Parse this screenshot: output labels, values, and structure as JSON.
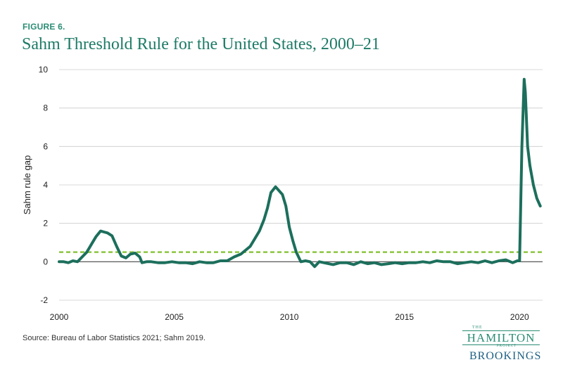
{
  "figure_label": "FIGURE 6.",
  "source": "Bureau of Labor Statistics 2021; Sahm 2019.",
  "source_prefix": "Source: ",
  "logo": {
    "the": "THE",
    "hamilton": "HAMILTON",
    "project": "PROJECT",
    "brookings": "BROOKINGS"
  },
  "colors": {
    "line": "#1c6f5c",
    "threshold": "#8cc63f",
    "title": "#1d7a66",
    "grid": "#cccccc"
  },
  "chart_data": {
    "type": "line",
    "title": "Sahm Threshold Rule for the United States, 2000–21",
    "xlabel": "",
    "ylabel": "Sahm rule gap",
    "xlim": [
      2000,
      2021
    ],
    "ylim": [
      -2,
      10
    ],
    "x_ticks": [
      2000,
      2005,
      2010,
      2015,
      2020
    ],
    "y_ticks": [
      -2,
      0,
      2,
      4,
      6,
      8,
      10
    ],
    "grid": "horizontal",
    "legend": "none",
    "threshold": {
      "value": 0.5,
      "style": "dashed"
    },
    "series": [
      {
        "x": [
          2000.0,
          2000.2,
          2000.4,
          2000.6,
          2000.8,
          2001.0,
          2001.2,
          2001.4,
          2001.6,
          2001.8,
          2001.95,
          2002.1,
          2002.3,
          2002.5,
          2002.7,
          2002.9,
          2003.1,
          2003.3,
          2003.5,
          2003.6,
          2003.8,
          2004.0,
          2004.3,
          2004.6,
          2004.9,
          2005.2,
          2005.5,
          2005.8,
          2006.1,
          2006.4,
          2006.7,
          2007.0,
          2007.3,
          2007.6,
          2007.9,
          2008.1,
          2008.3,
          2008.5,
          2008.7,
          2008.9,
          2009.05,
          2009.2,
          2009.4,
          2009.55,
          2009.7,
          2009.85,
          2010.0,
          2010.15,
          2010.3,
          2010.5,
          2010.7,
          2010.9,
          2011.1,
          2011.3,
          2011.5,
          2011.7,
          2011.9,
          2012.2,
          2012.5,
          2012.8,
          2013.1,
          2013.4,
          2013.7,
          2014.0,
          2014.3,
          2014.6,
          2014.9,
          2015.2,
          2015.5,
          2015.8,
          2016.1,
          2016.4,
          2016.7,
          2017.0,
          2017.3,
          2017.6,
          2017.9,
          2018.2,
          2018.5,
          2018.8,
          2019.1,
          2019.4,
          2019.7,
          2019.9,
          2020.0,
          2020.1,
          2020.2,
          2020.25,
          2020.35,
          2020.45,
          2020.6,
          2020.75,
          2020.9
        ],
        "y": [
          0.0,
          0.0,
          -0.05,
          0.05,
          0.0,
          0.25,
          0.5,
          0.9,
          1.3,
          1.6,
          1.55,
          1.5,
          1.35,
          0.8,
          0.3,
          0.2,
          0.4,
          0.45,
          0.25,
          -0.05,
          0.0,
          0.0,
          -0.05,
          -0.05,
          0.0,
          -0.05,
          -0.05,
          -0.1,
          0.0,
          -0.05,
          -0.05,
          0.05,
          0.05,
          0.25,
          0.4,
          0.6,
          0.8,
          1.2,
          1.6,
          2.2,
          2.8,
          3.6,
          3.9,
          3.7,
          3.5,
          2.9,
          1.8,
          1.1,
          0.5,
          0.0,
          0.05,
          0.0,
          -0.25,
          0.0,
          -0.05,
          -0.1,
          -0.15,
          -0.05,
          -0.05,
          -0.15,
          0.0,
          -0.1,
          -0.05,
          -0.15,
          -0.1,
          -0.05,
          -0.1,
          -0.05,
          -0.05,
          0.0,
          -0.05,
          0.05,
          0.0,
          0.0,
          -0.1,
          -0.05,
          0.0,
          -0.05,
          0.05,
          -0.05,
          0.05,
          0.1,
          -0.05,
          0.05,
          0.05,
          6.0,
          9.5,
          8.8,
          6.0,
          5.0,
          4.0,
          3.3,
          2.9
        ]
      }
    ]
  }
}
